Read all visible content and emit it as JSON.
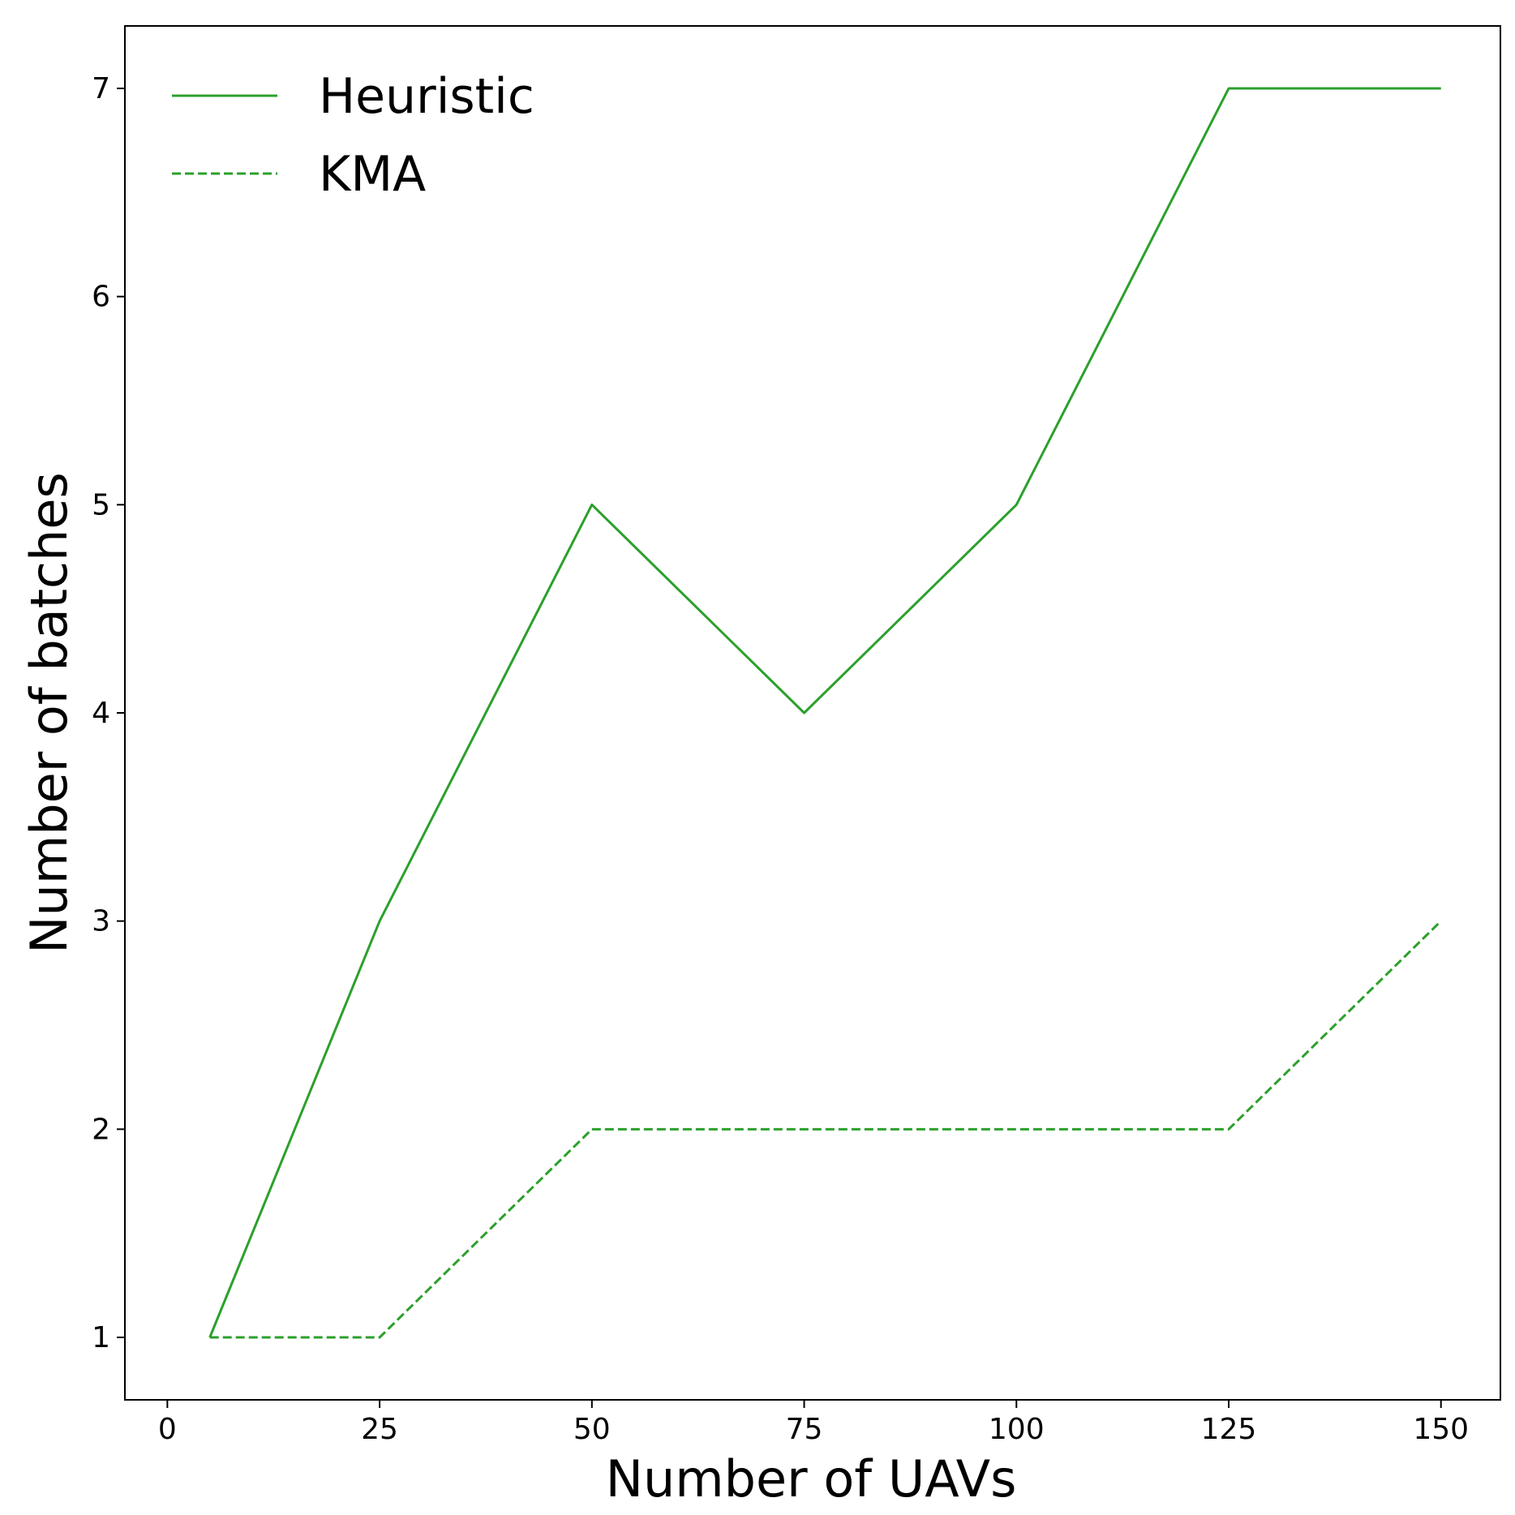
{
  "chart_data": {
    "type": "line",
    "xlabel": "Number of UAVs",
    "ylabel": "Number of batches",
    "xlim": [
      -5,
      157
    ],
    "ylim": [
      0.7,
      7.3
    ],
    "xticks": [
      0,
      25,
      50,
      75,
      100,
      125,
      150
    ],
    "yticks": [
      1,
      2,
      3,
      4,
      5,
      6,
      7
    ],
    "grid": false,
    "legend_position": "top-left",
    "x": [
      5,
      25,
      50,
      75,
      100,
      125,
      150
    ],
    "series": [
      {
        "name": "Heuristic",
        "values": [
          1,
          3,
          5,
          4,
          5,
          7,
          7
        ],
        "color": "#2ca02c",
        "style": "solid"
      },
      {
        "name": "KMA",
        "values": [
          1,
          1,
          2,
          2,
          2,
          2,
          3
        ],
        "color": "#2ca02c",
        "style": "dashed"
      }
    ]
  }
}
